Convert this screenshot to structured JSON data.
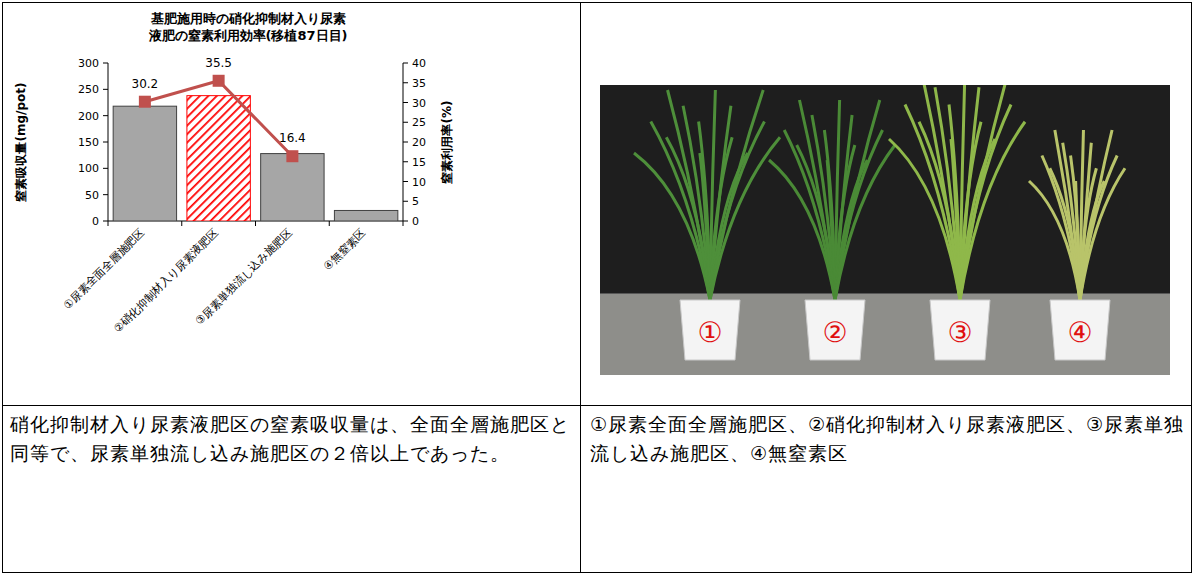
{
  "chart_data": {
    "type": "bar",
    "title": "基肥施用時の硝化抑制材入り尿素液肥の窒素利用効率(移植87日目)",
    "categories": [
      "①尿素全面全層施肥区",
      "②硝化抑制材入り尿素液肥区",
      "③尿素単独流し込み施肥区",
      "④無窒素区"
    ],
    "series": [
      {
        "type": "bar",
        "color": "#a6a6a6",
        "colors": [
          "#a6a6a6",
          "#ff0000",
          "#a6a6a6",
          "#a6a6a6"
        ],
        "values": [
          218,
          238,
          128,
          20
        ]
      },
      {
        "type": "line",
        "axis": "y2",
        "color": "#c0504d",
        "marker": "square",
        "line_style": "solid",
        "data_labels": true,
        "values": [
          30.2,
          35.5,
          16.4,
          null
        ]
      }
    ],
    "y_label": "窒素吸収量(mg/pot)",
    "y2_label": "窒素利用率(%)",
    "ylim": [
      0,
      300
    ],
    "yticks": [
      0,
      50,
      100,
      150,
      200,
      250,
      300
    ],
    "y2lim": [
      0,
      40
    ],
    "y2ticks": [
      0,
      5,
      10,
      15,
      20,
      25,
      30,
      35,
      40
    ],
    "grid": false
  },
  "captions": [
    "硝化抑制材入り尿素液肥区の窒素吸収量は、全面全層施肥区と同等で、尿素単独流し込み施肥区の２倍以上であった。",
    "①尿素全面全層施肥区、②硝化抑制材入り尿素液肥区、③尿素単独流し込み施肥区、④無窒素区"
  ],
  "photo": {
    "pot_labels": [
      "①",
      "②",
      "③",
      "④"
    ]
  }
}
